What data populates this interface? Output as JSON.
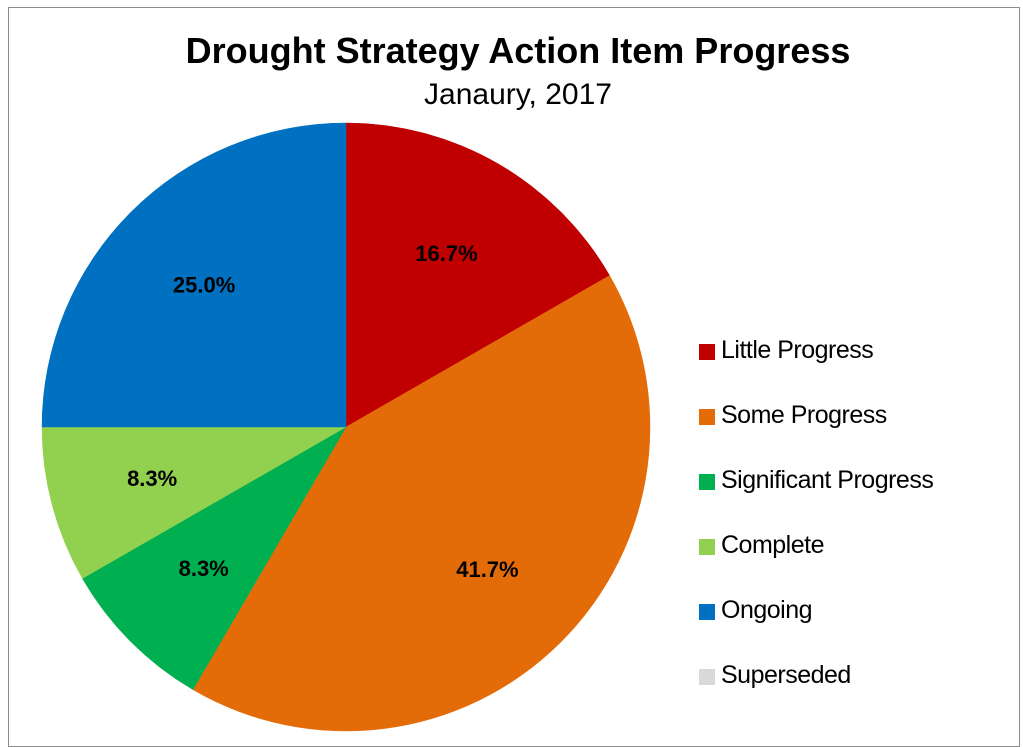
{
  "chart_data": {
    "type": "pie",
    "title": "Drought Strategy Action Item Progress",
    "subtitle": "Janaury, 2017",
    "categories": [
      "Little Progress",
      "Some Progress",
      "Significant Progress",
      "Complete",
      "Ongoing",
      "Superseded"
    ],
    "values": [
      16.7,
      41.7,
      8.3,
      8.3,
      25.0,
      0.0
    ],
    "data_labels": [
      "16.7%",
      "41.7%",
      "8.3%",
      "8.3%",
      "25.0%",
      ""
    ],
    "colors": [
      "#c00000",
      "#e36c09",
      "#00b050",
      "#92d050",
      "#0070c0",
      "#d9d9d9"
    ],
    "start_angle_degrees": 0,
    "direction": "clockwise",
    "legend_position": "right"
  }
}
